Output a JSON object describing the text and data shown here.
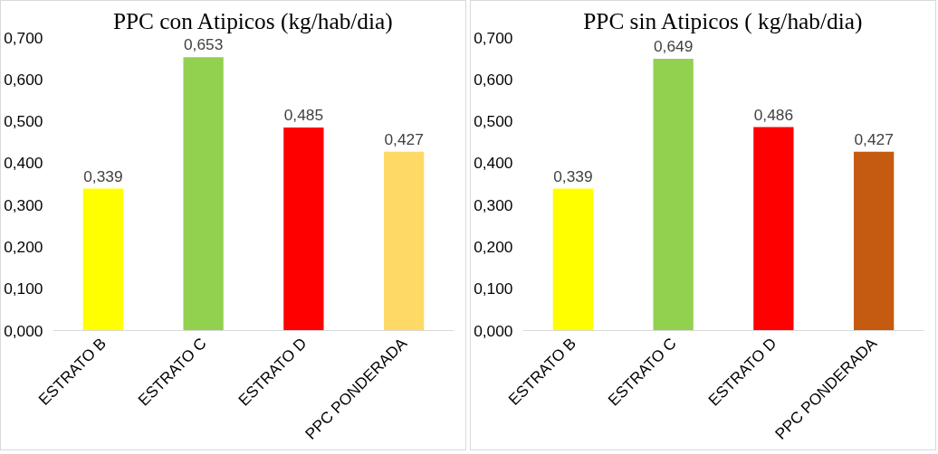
{
  "chart_data": [
    {
      "type": "bar",
      "title": "PPC con Atipicos (kg/hab/dia)",
      "categories": [
        "ESTRATO B",
        "ESTRATO C",
        "ESTRATO D",
        "PPC PONDERADA"
      ],
      "values": [
        0.339,
        0.653,
        0.485,
        0.427
      ],
      "colors": [
        "#ffff00",
        "#92d050",
        "#ff0000",
        "#ffd966"
      ],
      "value_labels": [
        "0,339",
        "0,653",
        "0,485",
        "0,427"
      ],
      "ylim": [
        0,
        0.7
      ],
      "yticks": [
        {
          "value": 0,
          "label": "0,000"
        },
        {
          "value": 0.1,
          "label": "0,100"
        },
        {
          "value": 0.2,
          "label": "0,200"
        },
        {
          "value": 0.3,
          "label": "0,300"
        },
        {
          "value": 0.4,
          "label": "0,400"
        },
        {
          "value": 0.5,
          "label": "0,500"
        },
        {
          "value": 0.6,
          "label": "0,600"
        },
        {
          "value": 0.7,
          "label": "0,700"
        }
      ],
      "grid": false
    },
    {
      "type": "bar",
      "title": "PPC sin Atipicos ( kg/hab/dia)",
      "categories": [
        "ESTRATO B",
        "ESTRATO C",
        "ESTRATO D",
        "PPC PONDERADA"
      ],
      "values": [
        0.339,
        0.649,
        0.486,
        0.427
      ],
      "colors": [
        "#ffff00",
        "#92d050",
        "#ff0000",
        "#c55a11"
      ],
      "value_labels": [
        "0,339",
        "0,649",
        "0,486",
        "0,427"
      ],
      "ylim": [
        0,
        0.7
      ],
      "yticks": [
        {
          "value": 0,
          "label": "0,000"
        },
        {
          "value": 0.1,
          "label": "0,100"
        },
        {
          "value": 0.2,
          "label": "0,200"
        },
        {
          "value": 0.3,
          "label": "0,300"
        },
        {
          "value": 0.4,
          "label": "0,400"
        },
        {
          "value": 0.5,
          "label": "0,500"
        },
        {
          "value": 0.6,
          "label": "0,600"
        },
        {
          "value": 0.7,
          "label": "0,700"
        }
      ],
      "grid": false
    }
  ]
}
